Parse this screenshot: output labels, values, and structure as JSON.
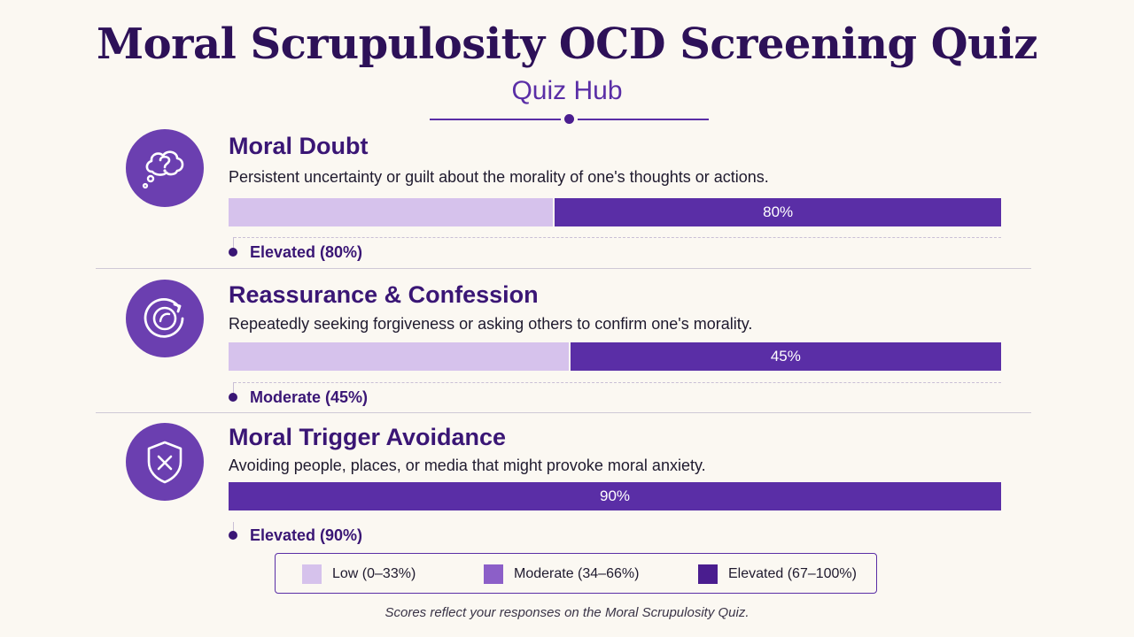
{
  "header": {
    "title": "Moral Scrupulosity OCD Screening Quiz",
    "subtitle": "Quiz Hub"
  },
  "categories": [
    {
      "title": "Moral Doubt",
      "description": "Persistent uncertainty or guilt about the morality of one's thoughts or actions.",
      "score": 80,
      "score_label": "80%",
      "status": "Elevated (80%)",
      "icon": "thought-bubble-question-icon"
    },
    {
      "title": "Reassurance & Confession",
      "description": "Repeatedly seeking forgiveness or asking others to confirm one's morality.",
      "score": 45,
      "score_label": "45%",
      "status": "Moderate (45%)",
      "icon": "circular-arrow-icon"
    },
    {
      "title": "Moral Trigger Avoidance",
      "description": "Avoiding people, places, or media that might provoke moral anxiety.",
      "score": 90,
      "score_label": "90%",
      "status": "Elevated (90%)",
      "icon": "shield-x-icon"
    }
  ],
  "legend": [
    {
      "label": "Low (0–33%)",
      "color": "#d6c2ec"
    },
    {
      "label": "Moderate (34–66%)",
      "color": "#8c5fc8"
    },
    {
      "label": "Elevated (67–100%)",
      "color": "#4a1d8f"
    }
  ],
  "footnote": "Scores reflect your responses on the Moral Scrupulosity Quiz.",
  "colors": {
    "accent": "#5a2ea6",
    "title": "#2d1158",
    "bar_track": "#d6c2ec",
    "icon_bg": "#6b3fb0"
  }
}
